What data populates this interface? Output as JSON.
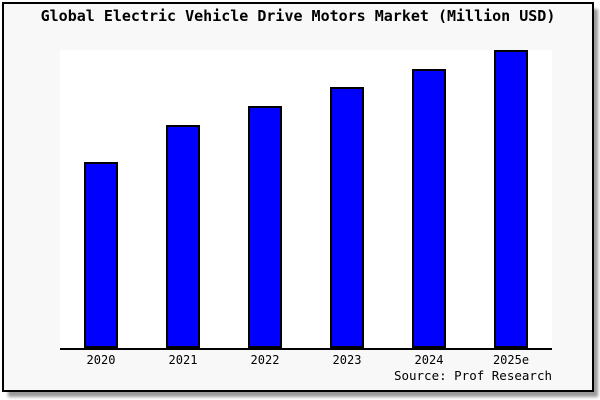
{
  "page": {
    "title": "Global Electric Vehicle Drive Motors Market (Million USD)",
    "source": "Source: Prof Research"
  },
  "colors": {
    "panel_bg": "#f8f8f8",
    "plot_bg": "#ffffff",
    "bar_fill": "#0000ff",
    "bar_border": "#000000",
    "axis_line": "#000000",
    "panel_border": "#000000",
    "shadow": "#9a9a9a"
  },
  "chart_data": {
    "type": "bar",
    "title": "Global Electric Vehicle Drive Motors Market (Million USD)",
    "categories": [
      "2020",
      "2021",
      "2022",
      "2023",
      "2024",
      "2025e"
    ],
    "values": [
      0.625,
      0.75,
      0.8125,
      0.875,
      0.9375,
      1.0
    ],
    "values_note": "fractions of tallest bar; no numeric y-axis scale shown in chart",
    "xlabel": "",
    "ylabel": "",
    "ylim": [
      0,
      1
    ],
    "grid": false,
    "legend": false,
    "y_axis_shown": false,
    "bar_color": "#0000ff",
    "source": "Source: Prof Research"
  }
}
